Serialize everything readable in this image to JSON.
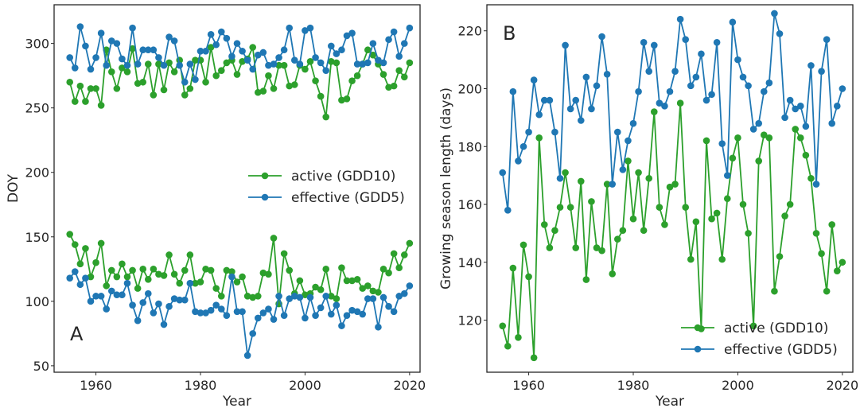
{
  "colors": {
    "active": "#2ca02c",
    "effective": "#1f77b4"
  },
  "chart_data": [
    {
      "type": "line",
      "panel_label": "A",
      "xlabel": "Year",
      "ylabel": "DOY",
      "xlim": [
        1952,
        2022
      ],
      "ylim": [
        45,
        330
      ],
      "xticks": [
        1960,
        1980,
        2000,
        2020
      ],
      "yticks": [
        50,
        100,
        150,
        200,
        250,
        300
      ],
      "grid": false,
      "legend_position": "center-right",
      "x": [
        1955,
        1956,
        1957,
        1958,
        1959,
        1960,
        1961,
        1962,
        1963,
        1964,
        1965,
        1966,
        1967,
        1968,
        1969,
        1970,
        1971,
        1972,
        1973,
        1974,
        1975,
        1976,
        1977,
        1978,
        1979,
        1980,
        1981,
        1982,
        1983,
        1984,
        1985,
        1986,
        1987,
        1988,
        1989,
        1990,
        1991,
        1992,
        1993,
        1994,
        1995,
        1996,
        1997,
        1998,
        1999,
        2000,
        2001,
        2002,
        2003,
        2004,
        2005,
        2006,
        2007,
        2008,
        2009,
        2010,
        2011,
        2012,
        2013,
        2014,
        2015,
        2016,
        2017,
        2018,
        2019,
        2020
      ],
      "series": [
        {
          "name": "active (GDD10)",
          "color_key": "active",
          "group": "end",
          "values": [
            270,
            255,
            267,
            255,
            265,
            265,
            252,
            295,
            278,
            265,
            281,
            278,
            296,
            269,
            270,
            284,
            260,
            284,
            264,
            285,
            278,
            287,
            260,
            265,
            287,
            287,
            270,
            297,
            275,
            279,
            285,
            287,
            276,
            286,
            288,
            297,
            262,
            263,
            275,
            265,
            283,
            283,
            267,
            268,
            283,
            280,
            286,
            271,
            259,
            243,
            286,
            285,
            256,
            257,
            271,
            275,
            284,
            295,
            291,
            284,
            276,
            266,
            267,
            279,
            274,
            285
          ]
        },
        {
          "name": "effective (GDD5)",
          "color_key": "effective",
          "group": "end",
          "values": [
            289,
            281,
            313,
            298,
            280,
            289,
            308,
            283,
            302,
            300,
            288,
            283,
            312,
            284,
            295,
            295,
            295,
            289,
            283,
            305,
            302,
            283,
            270,
            284,
            272,
            294,
            294,
            307,
            299,
            309,
            304,
            290,
            300,
            294,
            287,
            280,
            291,
            293,
            283,
            284,
            289,
            295,
            312,
            287,
            284,
            310,
            312,
            289,
            285,
            279,
            298,
            292,
            295,
            306,
            308,
            284,
            284,
            285,
            300,
            287,
            285,
            303,
            309,
            290,
            300,
            312
          ]
        },
        {
          "name": "active (GDD10)",
          "color_key": "active",
          "group": "start",
          "values": [
            152,
            144,
            129,
            141,
            119,
            130,
            145,
            112,
            124,
            119,
            129,
            119,
            124,
            110,
            125,
            117,
            125,
            121,
            120,
            136,
            121,
            114,
            124,
            136,
            114,
            115,
            125,
            124,
            110,
            104,
            124,
            123,
            115,
            119,
            104,
            103,
            104,
            122,
            121,
            149,
            98,
            137,
            124,
            106,
            116,
            105,
            106,
            111,
            109,
            125,
            104,
            102,
            126,
            116,
            116,
            117,
            110,
            112,
            108,
            107,
            125,
            122,
            137,
            126,
            136,
            145
          ]
        },
        {
          "name": "effective (GDD5)",
          "color_key": "effective",
          "group": "start",
          "values": [
            118,
            123,
            113,
            118,
            100,
            104,
            104,
            94,
            108,
            105,
            105,
            114,
            97,
            85,
            99,
            106,
            91,
            98,
            82,
            96,
            102,
            101,
            101,
            114,
            92,
            91,
            91,
            93,
            97,
            94,
            89,
            119,
            92,
            92,
            58,
            75,
            87,
            91,
            94,
            86,
            104,
            89,
            102,
            104,
            103,
            87,
            103,
            89,
            95,
            104,
            90,
            97,
            81,
            89,
            93,
            92,
            90,
            102,
            102,
            80,
            103,
            96,
            92,
            104,
            106,
            112
          ]
        }
      ]
    },
    {
      "type": "line",
      "panel_label": "B",
      "xlabel": "Year",
      "ylabel": "Growing season length (days)",
      "xlim": [
        1952,
        2022
      ],
      "ylim": [
        102,
        229
      ],
      "xticks": [
        1960,
        1980,
        2000,
        2020
      ],
      "yticks": [
        120,
        140,
        160,
        180,
        200,
        220
      ],
      "grid": false,
      "legend_position": "lower-right",
      "x": [
        1955,
        1956,
        1957,
        1958,
        1959,
        1960,
        1961,
        1962,
        1963,
        1964,
        1965,
        1966,
        1967,
        1968,
        1969,
        1970,
        1971,
        1972,
        1973,
        1974,
        1975,
        1976,
        1977,
        1978,
        1979,
        1980,
        1981,
        1982,
        1983,
        1984,
        1985,
        1986,
        1987,
        1988,
        1989,
        1990,
        1991,
        1992,
        1993,
        1994,
        1995,
        1996,
        1997,
        1998,
        1999,
        2000,
        2001,
        2002,
        2003,
        2004,
        2005,
        2006,
        2007,
        2008,
        2009,
        2010,
        2011,
        2012,
        2013,
        2014,
        2015,
        2016,
        2017,
        2018,
        2019,
        2020
      ],
      "series": [
        {
          "name": "active (GDD10)",
          "color_key": "active",
          "values": [
            118,
            111,
            138,
            114,
            146,
            135,
            107,
            183,
            153,
            145,
            151,
            159,
            171,
            159,
            145,
            168,
            134,
            161,
            145,
            144,
            167,
            136,
            148,
            151,
            175,
            155,
            171,
            151,
            169,
            192,
            159,
            153,
            166,
            167,
            195,
            159,
            141,
            154,
            117,
            182,
            155,
            157,
            141,
            162,
            176,
            183,
            160,
            150,
            118,
            175,
            184,
            183,
            130,
            142,
            156,
            160,
            186,
            183,
            177,
            169,
            150,
            143,
            130,
            153,
            137,
            140
          ]
        },
        {
          "name": "effective (GDD5)",
          "color_key": "effective",
          "values": [
            171,
            158,
            199,
            175,
            180,
            185,
            203,
            191,
            196,
            196,
            185,
            169,
            215,
            193,
            196,
            189,
            204,
            193,
            201,
            218,
            205,
            167,
            185,
            172,
            182,
            188,
            199,
            216,
            206,
            215,
            195,
            194,
            199,
            206,
            224,
            217,
            201,
            204,
            212,
            196,
            198,
            216,
            181,
            170,
            223,
            210,
            204,
            201,
            186,
            188,
            199,
            202,
            226,
            219,
            190,
            196,
            193,
            194,
            187,
            208,
            167,
            206,
            217,
            188,
            194,
            200
          ]
        }
      ]
    }
  ]
}
